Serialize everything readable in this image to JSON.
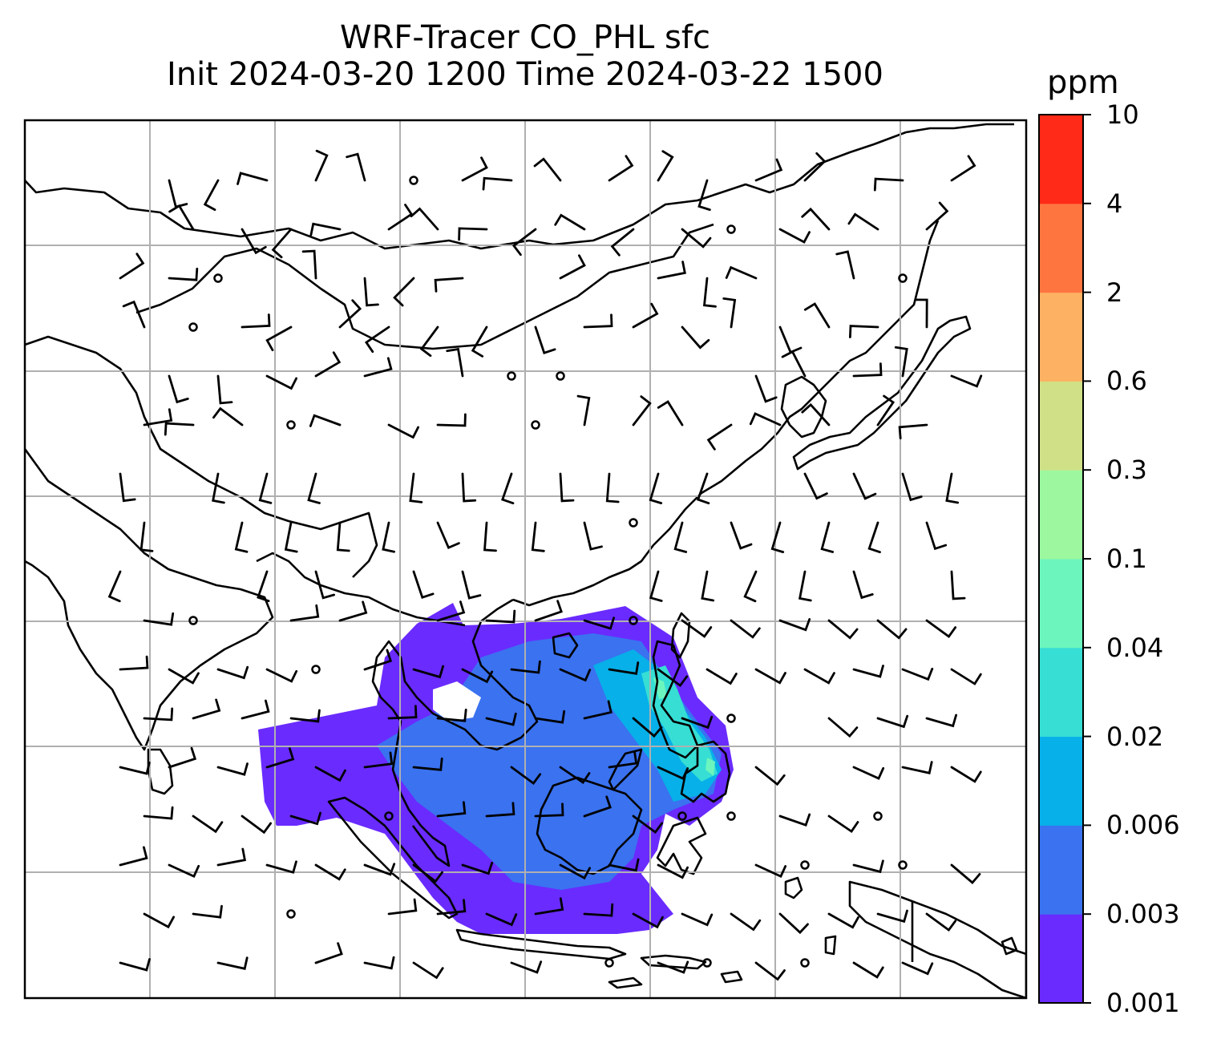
{
  "title": {
    "line1": "WRF-Tracer CO_PHL sfc",
    "line2": "Init 2024-03-20 1200 Time 2024-03-22 1500"
  },
  "colorbar": {
    "unit": "ppm",
    "levels": [
      "0.001",
      "0.003",
      "0.006",
      "0.02",
      "0.04",
      "0.1",
      "0.3",
      "0.6",
      "2",
      "4",
      "10"
    ],
    "colors": [
      "#6a2bff",
      "#3a72f0",
      "#07b0e8",
      "#36ded4",
      "#6cf6bd",
      "#9cf79e",
      "#cfe087",
      "#fdb162",
      "#ff7540",
      "#ff2a18"
    ]
  },
  "chart_data": {
    "type": "heatmap",
    "variable": "CO_PHL tracer, surface",
    "unit": "ppm",
    "levels": [
      0.001,
      0.003,
      0.006,
      0.02,
      0.04,
      0.1,
      0.3,
      0.6,
      2,
      4,
      10
    ],
    "overlays": [
      "coastlines",
      "gridlines",
      "wind barbs"
    ],
    "grid": true,
    "legend": "colorbar right"
  }
}
